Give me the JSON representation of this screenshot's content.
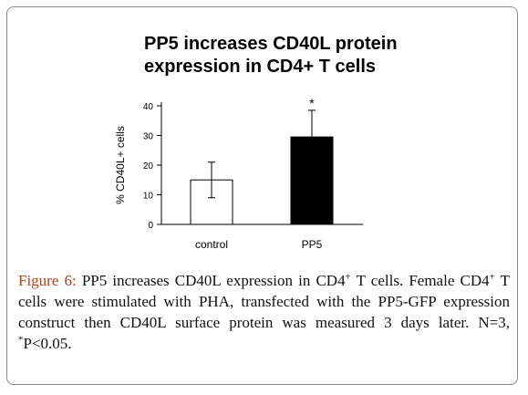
{
  "chart_data": {
    "type": "bar",
    "title_lines": [
      "PP5 increases CD40L protein",
      "expression in CD4+ T cells"
    ],
    "ylabel": "% CD40L+ cells",
    "xlabel": "",
    "ylim": [
      0,
      40
    ],
    "yticks": [
      0,
      10,
      20,
      30,
      40
    ],
    "categories": [
      "control",
      "PP5"
    ],
    "values": [
      15,
      29.5
    ],
    "error": [
      6,
      9
    ],
    "bar_colors": [
      "#ffffff",
      "#000000"
    ],
    "annotations": [
      {
        "category": "PP5",
        "text": "*"
      }
    ],
    "grid": false,
    "legend": "none"
  },
  "caption": {
    "label": "Figure 6:",
    "part1": " PP5 increases CD40L expression in CD4",
    "sup1": "+",
    "part2": " T cells. Female CD4",
    "sup2": "+",
    "part3": " T cells were stimulated with PHA, transfected with the PP5-GFP expression construct then CD40L surface protein was measured 3 days later. N=3, ",
    "sup3": "*",
    "part4": "P<0.05."
  }
}
